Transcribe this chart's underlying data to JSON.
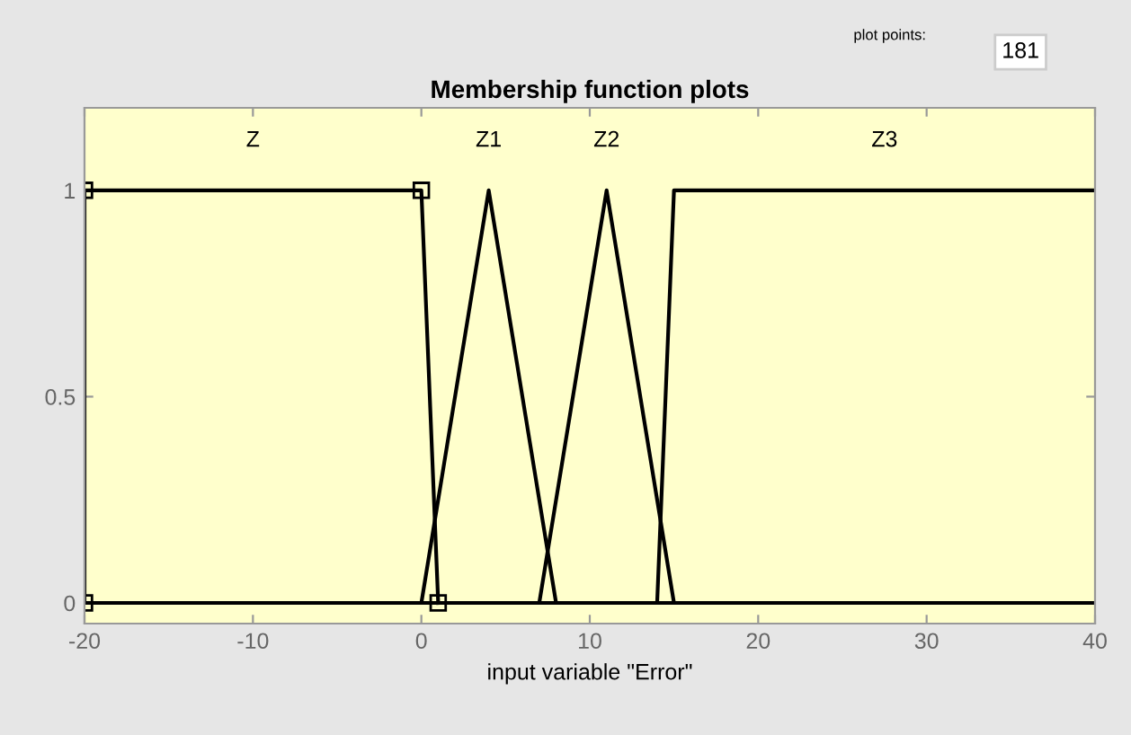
{
  "chart_data": {
    "type": "line",
    "title": "Membership function plots",
    "xlabel": "input variable \"Error\"",
    "xlim": [
      -20,
      40
    ],
    "ylim": [
      -0.05,
      1.2
    ],
    "xticks": [
      -20,
      -10,
      0,
      10,
      20,
      30,
      40
    ],
    "yticks": [
      0,
      0.5,
      1
    ],
    "grid": false,
    "legend": false,
    "line_style": "solid",
    "annotations": [
      "plot points:",
      "181"
    ],
    "series": [
      {
        "name": "Z",
        "color": "#000000",
        "marker": "square",
        "x": [
          -20,
          -20,
          0,
          1
        ],
        "values": [
          0,
          1,
          1,
          0
        ]
      },
      {
        "name": "Z1",
        "color": "#000000",
        "marker": "none",
        "x": [
          -20,
          0,
          4,
          8,
          40
        ],
        "values": [
          0,
          0,
          1,
          0,
          0
        ]
      },
      {
        "name": "Z2",
        "color": "#000000",
        "marker": "none",
        "x": [
          -20,
          7,
          11,
          15,
          40
        ],
        "values": [
          0,
          0,
          1,
          0,
          0
        ]
      },
      {
        "name": "Z3",
        "color": "#000000",
        "marker": "none",
        "x": [
          -20,
          14,
          15,
          40
        ],
        "values": [
          0,
          0,
          1,
          1
        ]
      }
    ]
  }
}
